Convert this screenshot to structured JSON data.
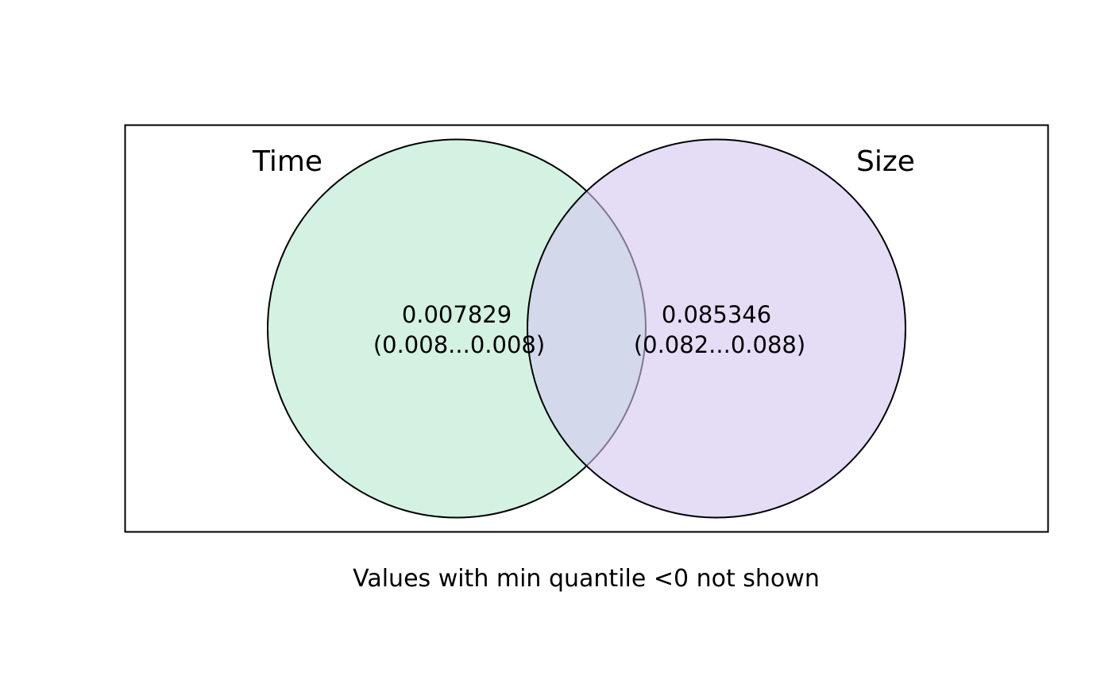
{
  "venn": {
    "sets": [
      {
        "name": "Time",
        "fill": "#b6e9cf"
      },
      {
        "name": "Size",
        "fill": "#d4c6f0"
      }
    ],
    "regions": [
      {
        "set": "Time",
        "value": "0.007829",
        "interval": "(0.008...0.008)"
      },
      {
        "set": "Size",
        "value": "0.085346",
        "interval": "(0.082...0.088)"
      }
    ],
    "caption": "Values with min quantile <0 not shown"
  },
  "colors": {
    "frame": "#000000",
    "outline": "#000000",
    "background": "#ffffff"
  }
}
